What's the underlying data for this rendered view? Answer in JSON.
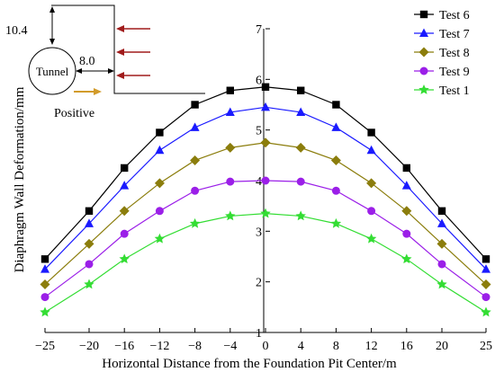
{
  "chart_data": {
    "type": "line",
    "xlabel": "Horizontal Distance from the Foundation Pit Center/m",
    "ylabel": "Diaphragm Wall Deformation/mm",
    "xlim": [
      -25,
      25
    ],
    "ylim": [
      1,
      7
    ],
    "xticks": [
      -25,
      -20,
      -16,
      -12,
      -8,
      -4,
      0,
      4,
      8,
      12,
      16,
      20,
      25
    ],
    "yticks": [
      1,
      2,
      3,
      4,
      5,
      6,
      7
    ],
    "grid": false,
    "legend_position": "top-right",
    "x": [
      -25,
      -20,
      -16,
      -12,
      -8,
      -4,
      0,
      4,
      8,
      12,
      16,
      20,
      25
    ],
    "series": [
      {
        "name": "Test 6",
        "color": "#000000",
        "marker": "square",
        "values": [
          2.45,
          3.4,
          4.25,
          4.95,
          5.5,
          5.78,
          5.85,
          5.78,
          5.5,
          4.95,
          4.25,
          3.4,
          2.45
        ]
      },
      {
        "name": "Test 7",
        "color": "#1a1aff",
        "marker": "triangle",
        "values": [
          2.25,
          3.15,
          3.9,
          4.6,
          5.05,
          5.35,
          5.45,
          5.35,
          5.05,
          4.6,
          3.9,
          3.15,
          2.25
        ]
      },
      {
        "name": "Test 8",
        "color": "#8b7d0c",
        "marker": "diamond",
        "values": [
          1.95,
          2.75,
          3.4,
          3.95,
          4.4,
          4.65,
          4.75,
          4.65,
          4.4,
          3.95,
          3.4,
          2.75,
          1.95
        ]
      },
      {
        "name": "Test 9",
        "color": "#9b1fe8",
        "marker": "circle",
        "values": [
          1.7,
          2.35,
          2.95,
          3.4,
          3.8,
          3.98,
          4.0,
          3.98,
          3.8,
          3.4,
          2.95,
          2.35,
          1.7
        ]
      },
      {
        "name": "Test 1",
        "color": "#33dd33",
        "marker": "star",
        "values": [
          1.4,
          1.95,
          2.45,
          2.85,
          3.15,
          3.3,
          3.35,
          3.3,
          3.15,
          2.85,
          2.45,
          1.95,
          1.4
        ]
      }
    ]
  },
  "inset": {
    "dim_vertical": "10.4",
    "dim_horizontal": "8.0",
    "tunnel_label": "Tunnel",
    "positive_label": "Positive",
    "arrow_color": "#a01c1c",
    "positive_arrow_color": "#d29b2a"
  }
}
